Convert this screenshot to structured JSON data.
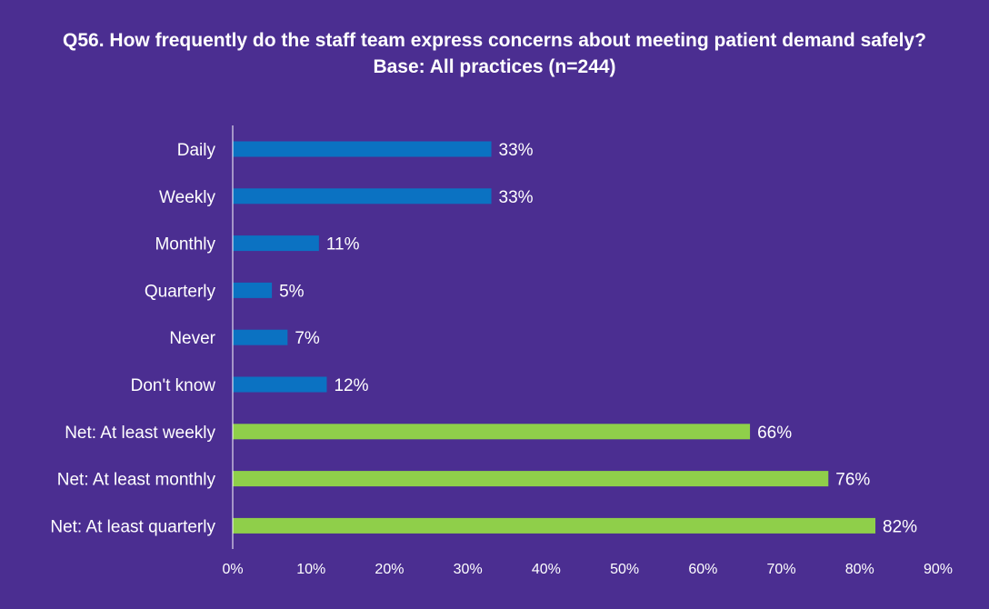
{
  "chart_data": {
    "type": "bar",
    "orientation": "horizontal",
    "title": "Q56. How frequently do the staff team express concerns about meeting patient demand safely? Base: All practices (n=244)",
    "categories": [
      "Daily",
      "Weekly",
      "Monthly",
      "Quarterly",
      "Never",
      "Don't know",
      "Net: At least weekly",
      "Net: At least monthly",
      "Net: At least quarterly"
    ],
    "values": [
      33,
      33,
      11,
      5,
      7,
      12,
      66,
      76,
      82
    ],
    "value_labels": [
      "33%",
      "33%",
      "11%",
      "5%",
      "7%",
      "12%",
      "66%",
      "76%",
      "82%"
    ],
    "bar_colors": [
      "#0b72c2",
      "#0b72c2",
      "#0b72c2",
      "#0b72c2",
      "#0b72c2",
      "#0b72c2",
      "#8fcf4a",
      "#8fcf4a",
      "#8fcf4a"
    ],
    "xlim": [
      0,
      90
    ],
    "x_ticks": [
      "0%",
      "10%",
      "20%",
      "30%",
      "40%",
      "50%",
      "60%",
      "70%",
      "80%",
      "90%"
    ],
    "xlabel": "",
    "ylabel": "",
    "grid": false,
    "background_color": "#4b2e91"
  }
}
